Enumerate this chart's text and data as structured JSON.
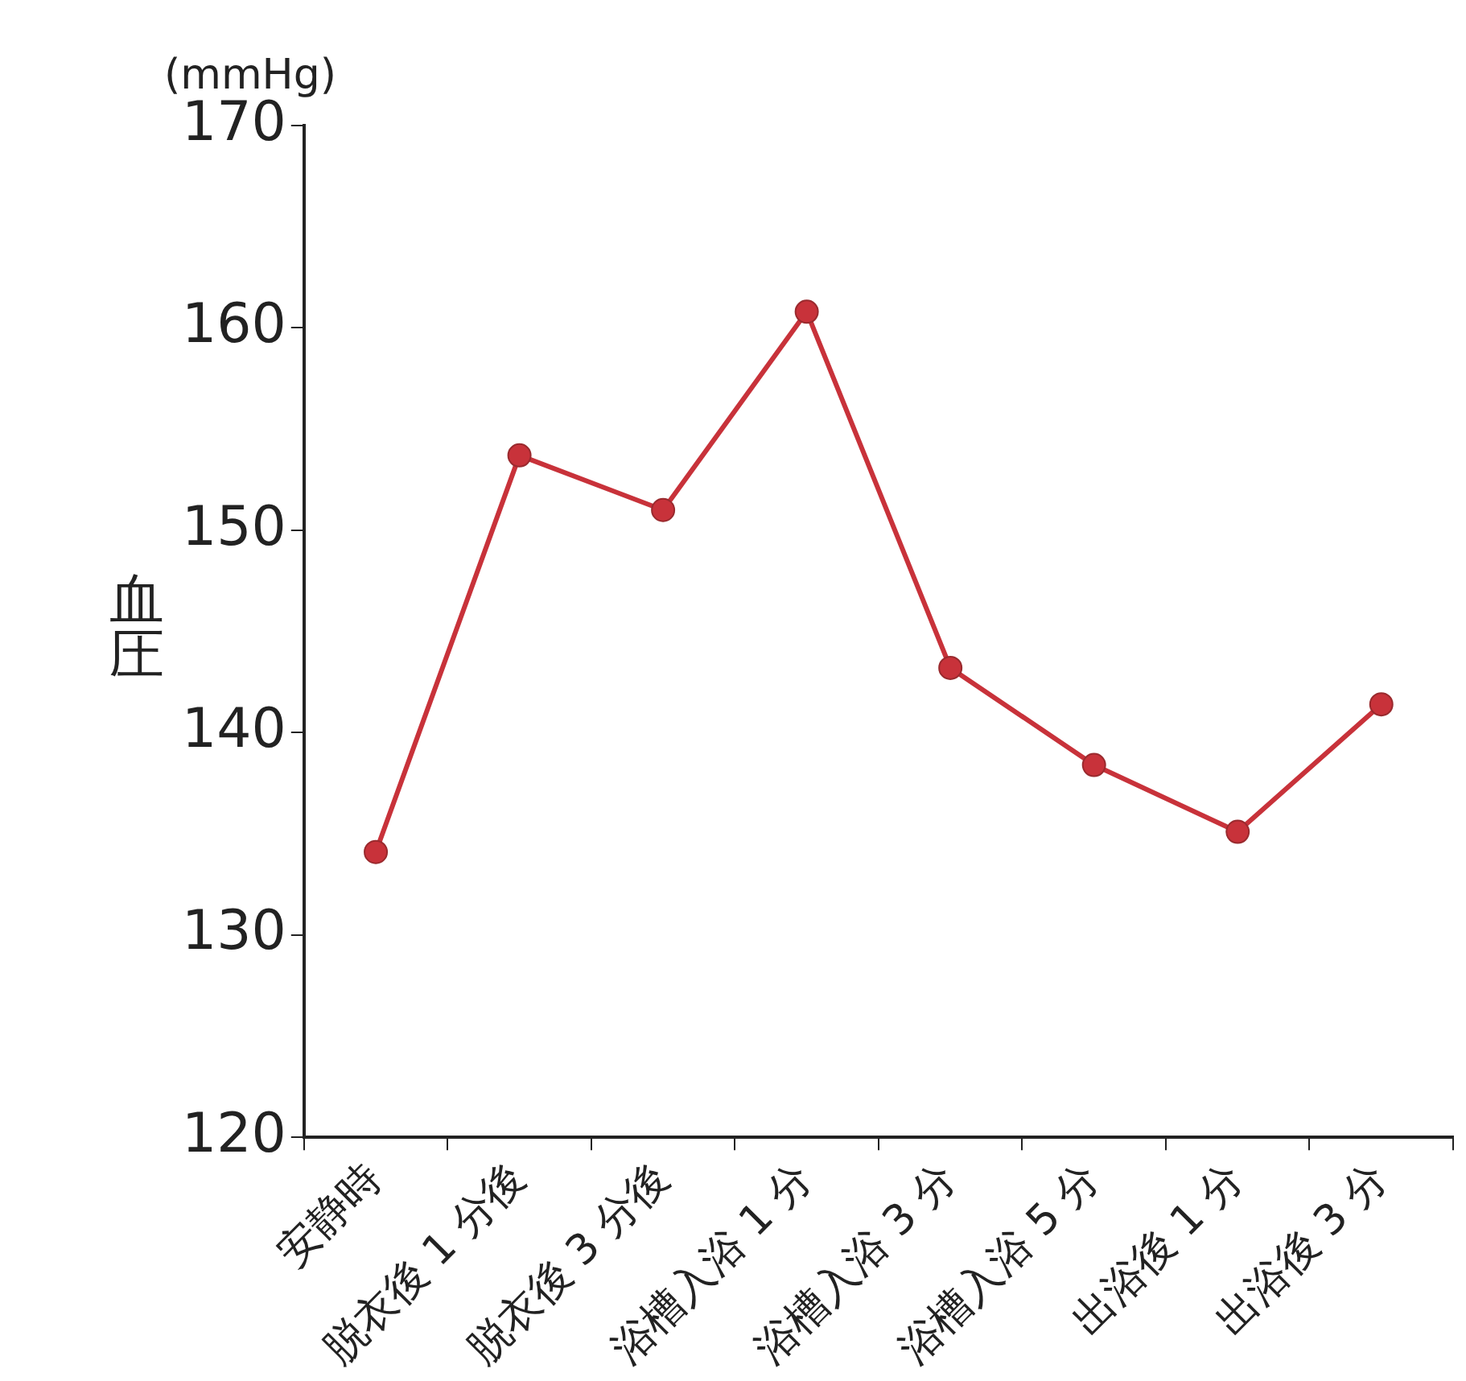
{
  "chart_data": {
    "type": "line",
    "ylabel": "血圧",
    "annotations": [
      "(mmHg)"
    ],
    "categories": [
      "安静時",
      "脱衣後 1 分後",
      "脱衣後 3 分後",
      "浴槽入浴 1 分",
      "浴槽入浴 3 分",
      "浴槽入浴 5 分",
      "出浴後 1 分",
      "出浴後 3 分"
    ],
    "series": [
      {
        "color": "#c8323a",
        "values": [
          134.1,
          153.7,
          151.0,
          160.8,
          143.2,
          138.4,
          135.1,
          141.4
        ]
      }
    ],
    "ylim": [
      120,
      170
    ],
    "yticks": [
      120,
      130,
      140,
      150,
      160,
      170
    ],
    "grid": false,
    "legend": false,
    "marker": "circle",
    "line_style": "solid"
  }
}
